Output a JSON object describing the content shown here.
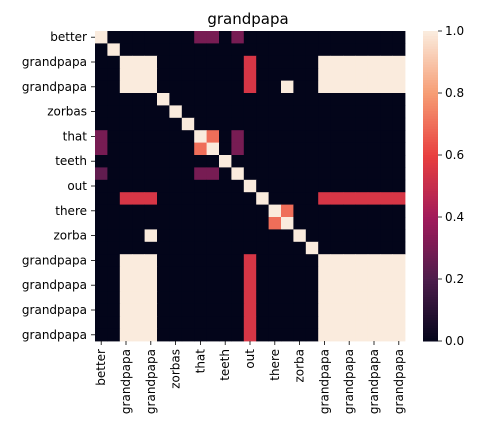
{
  "chart_data": {
    "type": "heatmap",
    "title": "grandpapa",
    "row_labels": [
      "better",
      "",
      "grandpapa",
      "",
      "grandpapa",
      "",
      "zorbas",
      "",
      "that",
      "",
      "teeth",
      "",
      "out",
      "",
      "there",
      "",
      "zorba",
      "",
      "grandpapa",
      "",
      "grandpapa",
      "",
      "grandpapa",
      "",
      "grandpapa"
    ],
    "col_labels": [
      "better",
      "",
      "grandpapa",
      "",
      "grandpapa",
      "",
      "zorbas",
      "",
      "that",
      "",
      "teeth",
      "",
      "out",
      "",
      "there",
      "",
      "zorba",
      "",
      "grandpapa",
      "",
      "grandpapa",
      "",
      "grandpapa",
      "",
      "grandpapa"
    ],
    "matrix": [
      [
        1,
        0,
        0,
        0,
        0,
        0,
        0,
        0,
        0,
        0,
        0,
        0,
        0,
        0,
        0,
        0,
        0,
        0,
        0,
        0,
        0,
        0,
        0,
        0,
        0
      ],
      [
        0,
        1,
        0,
        0,
        0,
        0,
        0,
        0,
        0,
        0,
        0,
        0,
        0,
        0,
        0,
        0,
        0,
        0,
        0,
        0,
        0,
        0,
        0,
        0,
        0
      ],
      [
        0,
        0,
        1,
        1,
        1,
        1,
        0,
        0,
        0,
        0,
        0,
        0,
        0,
        0,
        0,
        0,
        0,
        0,
        0,
        0,
        0,
        0,
        0,
        0,
        0
      ],
      [
        0,
        0,
        1,
        1,
        1,
        1,
        0,
        0,
        0,
        0,
        0,
        0,
        0,
        0,
        0,
        0,
        0,
        0,
        0,
        0,
        0,
        0,
        0,
        0,
        0
      ],
      [
        0,
        0,
        1,
        1,
        1,
        1,
        0,
        0,
        0,
        0,
        0,
        0,
        0,
        0,
        0,
        0,
        0,
        0,
        0,
        0,
        0,
        0,
        0,
        0,
        0
      ],
      [
        0,
        0,
        1,
        1,
        1,
        1,
        0,
        0,
        0,
        0,
        0,
        0,
        0,
        0,
        0,
        0,
        0,
        0,
        0,
        0,
        0,
        0,
        0,
        0,
        0
      ],
      [
        0,
        0,
        0,
        0,
        0,
        0,
        1,
        0,
        0,
        0,
        0,
        0,
        0,
        0,
        0,
        0,
        0,
        0,
        0,
        0,
        0,
        0,
        0,
        0,
        0
      ],
      [
        0,
        0,
        0,
        0,
        0,
        0,
        0,
        1,
        0,
        0,
        0,
        0,
        0,
        0,
        0,
        0,
        0,
        0,
        0,
        0,
        0,
        0,
        0,
        0,
        0
      ],
      [
        0,
        0,
        0,
        0,
        0,
        0,
        0,
        0,
        1,
        0,
        0,
        0,
        0,
        0,
        0,
        0,
        0,
        0,
        0,
        0,
        0,
        0,
        0,
        0,
        0
      ],
      [
        0,
        0,
        0,
        0,
        0,
        0,
        0,
        0,
        0,
        1,
        0,
        0,
        0,
        0,
        0,
        0,
        0,
        0,
        0,
        0,
        0,
        0,
        0,
        0,
        0
      ],
      [
        0,
        0,
        0,
        0,
        0,
        0,
        0,
        0,
        0,
        0,
        1,
        0,
        0,
        0,
        0,
        0,
        0,
        0,
        0,
        0,
        0,
        0,
        0,
        0,
        0
      ],
      [
        0,
        0,
        0,
        0,
        0,
        0,
        0,
        0,
        0,
        0,
        0,
        1,
        0,
        0,
        0,
        0,
        0,
        0,
        0,
        0,
        0,
        0,
        0,
        0,
        0
      ],
      [
        0,
        0,
        0,
        0,
        0,
        0,
        0,
        0,
        0,
        0,
        0,
        0,
        1,
        0,
        0,
        0,
        0,
        0,
        0,
        0,
        0,
        0,
        0,
        0,
        0
      ],
      [
        0,
        0,
        0,
        0,
        0,
        0,
        0,
        0,
        0,
        0,
        0,
        0,
        0,
        1,
        0,
        0,
        0,
        0,
        0,
        0,
        0,
        0,
        0,
        0,
        0
      ],
      [
        0,
        0,
        0,
        0,
        0,
        0,
        0,
        0,
        0,
        0,
        0,
        0,
        0,
        0,
        1,
        0,
        0,
        0,
        0,
        0,
        0,
        0,
        0,
        0,
        0
      ],
      [
        0,
        0,
        0,
        0,
        0,
        0,
        0,
        0,
        0,
        0,
        0,
        0,
        0,
        0,
        0,
        1,
        0,
        0,
        0,
        0,
        0,
        0,
        0,
        0,
        0
      ],
      [
        0,
        0,
        0,
        0,
        0,
        0,
        0,
        0,
        0,
        0,
        0,
        0,
        0,
        0,
        0,
        0,
        1,
        0,
        0,
        0,
        0,
        0,
        0,
        0,
        0
      ],
      [
        0,
        0,
        0,
        0,
        0,
        0,
        0,
        0,
        0,
        0,
        0,
        0,
        0,
        0,
        0,
        0,
        0,
        1,
        0,
        0,
        0,
        0,
        0,
        0,
        0
      ],
      [
        0,
        0,
        0,
        0,
        0,
        0,
        0,
        0,
        0,
        0,
        0,
        0,
        0,
        0,
        0,
        0,
        0,
        0,
        1,
        1,
        1,
        1,
        1,
        1,
        1
      ],
      [
        0,
        0,
        0,
        0,
        0,
        0,
        0,
        0,
        0,
        0,
        0,
        0,
        0,
        0,
        0,
        0,
        0,
        0,
        1,
        1,
        1,
        1,
        1,
        1,
        1
      ],
      [
        0,
        0,
        0,
        0,
        0,
        0,
        0,
        0,
        0,
        0,
        0,
        0,
        0,
        0,
        0,
        0,
        0,
        0,
        1,
        1,
        1,
        1,
        1,
        1,
        1
      ],
      [
        0,
        0,
        0,
        0,
        0,
        0,
        0,
        0,
        0,
        0,
        0,
        0,
        0,
        0,
        0,
        0,
        0,
        0,
        1,
        1,
        1,
        1,
        1,
        1,
        1
      ],
      [
        0,
        0,
        0,
        0,
        0,
        0,
        0,
        0,
        0,
        0,
        0,
        0,
        0,
        0,
        0,
        0,
        0,
        0,
        1,
        1,
        1,
        1,
        1,
        1,
        1
      ],
      [
        0,
        0,
        0,
        0,
        0,
        0,
        0,
        0,
        0,
        0,
        0,
        0,
        0,
        0,
        0,
        0,
        0,
        0,
        1,
        1,
        1,
        1,
        1,
        1,
        1
      ],
      [
        0,
        0,
        0,
        0,
        0,
        0,
        0,
        0,
        0,
        0,
        0,
        0,
        0,
        0,
        0,
        0,
        0,
        0,
        1,
        1,
        1,
        1,
        1,
        1,
        1
      ]
    ],
    "overrides": [
      [
        0,
        0,
        1.0
      ],
      [
        0,
        1,
        0.0
      ],
      [
        0,
        8,
        0.3
      ],
      [
        0,
        9,
        0.3
      ],
      [
        0,
        11,
        0.3
      ],
      [
        1,
        1,
        1.0
      ],
      [
        2,
        2,
        1.0
      ],
      [
        2,
        3,
        1.0
      ],
      [
        2,
        4,
        1.0
      ],
      [
        2,
        12,
        0.55
      ],
      [
        2,
        18,
        1.0
      ],
      [
        2,
        19,
        1.0
      ],
      [
        2,
        20,
        1.0
      ],
      [
        2,
        21,
        1.0
      ],
      [
        2,
        22,
        1.0
      ],
      [
        2,
        23,
        1.0
      ],
      [
        2,
        24,
        1.0
      ],
      [
        3,
        2,
        1.0
      ],
      [
        3,
        3,
        1.0
      ],
      [
        3,
        4,
        1.0
      ],
      [
        3,
        12,
        0.55
      ],
      [
        3,
        18,
        1.0
      ],
      [
        3,
        19,
        1.0
      ],
      [
        3,
        20,
        1.0
      ],
      [
        3,
        21,
        1.0
      ],
      [
        3,
        22,
        1.0
      ],
      [
        3,
        23,
        1.0
      ],
      [
        3,
        24,
        1.0
      ],
      [
        4,
        2,
        1.0
      ],
      [
        4,
        3,
        1.0
      ],
      [
        4,
        4,
        1.0
      ],
      [
        4,
        12,
        0.55
      ],
      [
        4,
        15,
        1.0
      ],
      [
        4,
        18,
        1.0
      ],
      [
        4,
        19,
        1.0
      ],
      [
        4,
        20,
        1.0
      ],
      [
        4,
        21,
        1.0
      ],
      [
        4,
        22,
        1.0
      ],
      [
        4,
        23,
        1.0
      ],
      [
        4,
        24,
        1.0
      ],
      [
        5,
        5,
        1.0
      ],
      [
        6,
        6,
        1.0
      ],
      [
        7,
        7,
        1.0
      ],
      [
        8,
        0,
        0.3
      ],
      [
        8,
        8,
        1.0
      ],
      [
        8,
        9,
        0.7
      ],
      [
        8,
        11,
        0.3
      ],
      [
        9,
        0,
        0.3
      ],
      [
        9,
        8,
        0.7
      ],
      [
        9,
        9,
        1.0
      ],
      [
        9,
        11,
        0.3
      ],
      [
        10,
        10,
        1.0
      ],
      [
        11,
        0,
        0.25
      ],
      [
        11,
        8,
        0.3
      ],
      [
        11,
        9,
        0.3
      ],
      [
        11,
        11,
        1.0
      ],
      [
        12,
        12,
        1.0
      ],
      [
        13,
        2,
        0.55
      ],
      [
        13,
        3,
        0.55
      ],
      [
        13,
        4,
        0.55
      ],
      [
        13,
        13,
        1.0
      ],
      [
        13,
        18,
        0.55
      ],
      [
        13,
        19,
        0.55
      ],
      [
        13,
        20,
        0.55
      ],
      [
        13,
        21,
        0.55
      ],
      [
        13,
        22,
        0.55
      ],
      [
        13,
        23,
        0.55
      ],
      [
        13,
        24,
        0.55
      ],
      [
        14,
        14,
        1.0
      ],
      [
        14,
        15,
        0.7
      ],
      [
        15,
        14,
        0.7
      ],
      [
        15,
        15,
        1.0
      ],
      [
        16,
        4,
        1.0
      ],
      [
        16,
        16,
        1.0
      ],
      [
        17,
        17,
        1.0
      ],
      [
        18,
        2,
        1.0
      ],
      [
        18,
        3,
        1.0
      ],
      [
        18,
        4,
        1.0
      ],
      [
        18,
        12,
        0.55
      ],
      [
        18,
        18,
        1.0
      ],
      [
        18,
        19,
        1.0
      ],
      [
        18,
        20,
        1.0
      ],
      [
        18,
        21,
        1.0
      ],
      [
        18,
        22,
        1.0
      ],
      [
        18,
        23,
        1.0
      ],
      [
        18,
        24,
        1.0
      ],
      [
        19,
        2,
        1.0
      ],
      [
        19,
        3,
        1.0
      ],
      [
        19,
        4,
        1.0
      ],
      [
        19,
        12,
        0.55
      ],
      [
        19,
        18,
        1.0
      ],
      [
        19,
        19,
        1.0
      ],
      [
        19,
        20,
        1.0
      ],
      [
        19,
        21,
        1.0
      ],
      [
        19,
        22,
        1.0
      ],
      [
        19,
        23,
        1.0
      ],
      [
        19,
        24,
        1.0
      ],
      [
        20,
        2,
        1.0
      ],
      [
        20,
        3,
        1.0
      ],
      [
        20,
        4,
        1.0
      ],
      [
        20,
        12,
        0.55
      ],
      [
        20,
        18,
        1.0
      ],
      [
        20,
        19,
        1.0
      ],
      [
        20,
        20,
        1.0
      ],
      [
        20,
        21,
        1.0
      ],
      [
        20,
        22,
        1.0
      ],
      [
        20,
        23,
        1.0
      ],
      [
        20,
        24,
        1.0
      ],
      [
        21,
        2,
        1.0
      ],
      [
        21,
        3,
        1.0
      ],
      [
        21,
        4,
        1.0
      ],
      [
        21,
        12,
        0.55
      ],
      [
        21,
        18,
        1.0
      ],
      [
        21,
        19,
        1.0
      ],
      [
        21,
        20,
        1.0
      ],
      [
        21,
        21,
        1.0
      ],
      [
        21,
        22,
        1.0
      ],
      [
        21,
        23,
        1.0
      ],
      [
        21,
        24,
        1.0
      ],
      [
        22,
        2,
        1.0
      ],
      [
        22,
        3,
        1.0
      ],
      [
        22,
        4,
        1.0
      ],
      [
        22,
        12,
        0.55
      ],
      [
        22,
        18,
        1.0
      ],
      [
        22,
        19,
        1.0
      ],
      [
        22,
        20,
        1.0
      ],
      [
        22,
        21,
        1.0
      ],
      [
        22,
        22,
        1.0
      ],
      [
        22,
        23,
        1.0
      ],
      [
        22,
        24,
        1.0
      ],
      [
        23,
        2,
        1.0
      ],
      [
        23,
        3,
        1.0
      ],
      [
        23,
        4,
        1.0
      ],
      [
        23,
        12,
        0.55
      ],
      [
        23,
        18,
        1.0
      ],
      [
        23,
        19,
        1.0
      ],
      [
        23,
        20,
        1.0
      ],
      [
        23,
        21,
        1.0
      ],
      [
        23,
        22,
        1.0
      ],
      [
        23,
        23,
        1.0
      ],
      [
        23,
        24,
        1.0
      ],
      [
        24,
        2,
        1.0
      ],
      [
        24,
        3,
        1.0
      ],
      [
        24,
        4,
        1.0
      ],
      [
        24,
        12,
        0.55
      ],
      [
        24,
        18,
        1.0
      ],
      [
        24,
        19,
        1.0
      ],
      [
        24,
        20,
        1.0
      ],
      [
        24,
        21,
        1.0
      ],
      [
        24,
        22,
        1.0
      ],
      [
        24,
        23,
        1.0
      ],
      [
        24,
        24,
        1.0
      ]
    ],
    "colorbar": {
      "min": 0.0,
      "max": 1.0,
      "ticks": [
        "0.0",
        "0.2",
        "0.4",
        "0.6",
        "0.8",
        "1.0"
      ],
      "colormap": "rocket",
      "stops": [
        "#03051a",
        "#4c1d4b",
        "#a11a5b",
        "#e83f3f",
        "#f69c73",
        "#faebdd"
      ]
    }
  }
}
